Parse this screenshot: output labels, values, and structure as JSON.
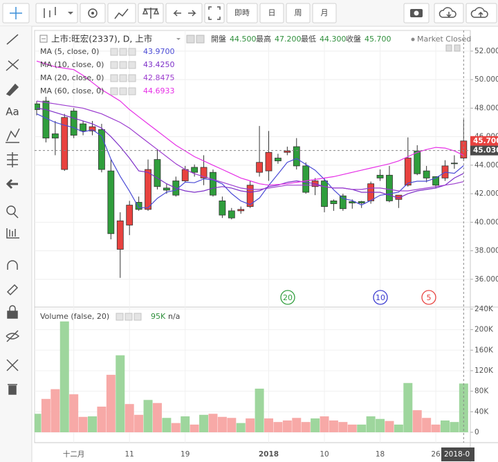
{
  "toolbar": {
    "buttons": [
      "即時",
      "日",
      "周",
      "月"
    ],
    "text_tool": "Aa"
  },
  "header": {
    "symbol": "上市:旺宏(2337), D, 上市",
    "fields": [
      {
        "label": "開盤",
        "value": "44.500"
      },
      {
        "label": "最高",
        "value": "47.200"
      },
      {
        "label": "最低",
        "value": "44.300"
      },
      {
        "label": "收盤",
        "value": "45.700"
      }
    ],
    "status": "Market Closed"
  },
  "chart_data": [
    {
      "type": "candlestick",
      "categories": [
        null,
        null,
        null,
        null,
        "十二月",
        null,
        null,
        null,
        null,
        null,
        "11",
        null,
        null,
        null,
        null,
        null,
        "19",
        null,
        null,
        null,
        null,
        null,
        null,
        null,
        null,
        "2018",
        null,
        null,
        null,
        null,
        null,
        "10",
        null,
        null,
        null,
        null,
        null,
        "18",
        null,
        null,
        null,
        null,
        null,
        "26",
        null,
        null,
        null
      ],
      "open": [
        48.3,
        48.5,
        46.2,
        43.7,
        47.8,
        46.9,
        46.4,
        46.5,
        43.6,
        38.1,
        39.8,
        41.4,
        40.9,
        44.4,
        42.4,
        42.9,
        42.9,
        43.85,
        43.1,
        43.5,
        41.5,
        40.8,
        40.8,
        41.1,
        43.5,
        43.6,
        44.5,
        44.9,
        45.3,
        43.95,
        42.5,
        42.9,
        41.5,
        41.85,
        41.45,
        41.45,
        41.5,
        43.3,
        43.3,
        41.6,
        42.6,
        45.0,
        43.6,
        43.2,
        43.1,
        44.15,
        44.5
      ],
      "high": [
        48.5,
        48.8,
        47.1,
        47.6,
        48.0,
        47.1,
        47.1,
        46.9,
        44.4,
        40.7,
        41.5,
        41.8,
        44.4,
        45.1,
        42.7,
        43.2,
        43.95,
        44.05,
        44.7,
        43.7,
        41.8,
        41.0,
        41.1,
        42.9,
        46.75,
        46.4,
        44.8,
        45.3,
        45.9,
        44.2,
        43.1,
        43.1,
        41.6,
        42.0,
        41.6,
        41.5,
        42.85,
        43.7,
        43.95,
        41.9,
        45.95,
        45.4,
        43.95,
        43.2,
        44.35,
        44.7,
        47.2
      ],
      "low": [
        47.5,
        45.6,
        44.7,
        43.6,
        45.9,
        46.1,
        46.1,
        43.5,
        38.8,
        36.1,
        39.1,
        40.8,
        40.8,
        42.3,
        42.0,
        41.8,
        42.8,
        43.2,
        42.6,
        41.8,
        40.3,
        40.2,
        40.6,
        41.0,
        43.2,
        42.9,
        44.1,
        44.7,
        43.7,
        42.0,
        41.9,
        40.7,
        40.8,
        40.8,
        40.95,
        41.0,
        41.3,
        42.9,
        41.4,
        41.0,
        42.5,
        43.3,
        42.8,
        42.4,
        42.9,
        43.75,
        44.3
      ],
      "close": [
        47.9,
        45.9,
        45.9,
        47.35,
        46.1,
        46.4,
        46.7,
        43.7,
        39.2,
        40.1,
        41.2,
        40.9,
        43.7,
        42.5,
        42.25,
        41.9,
        43.7,
        43.5,
        43.85,
        41.9,
        40.5,
        40.3,
        40.9,
        42.6,
        44.2,
        44.9,
        44.3,
        45.0,
        43.95,
        42.1,
        42.9,
        41.1,
        41.3,
        40.95,
        41.35,
        41.35,
        42.7,
        43.1,
        41.5,
        41.9,
        44.5,
        43.4,
        43.1,
        42.6,
        43.95,
        44.1,
        45.7
      ],
      "up_color": "#e8423f",
      "down_color": "#2f9e3c",
      "ylim": [
        34.1,
        53.45
      ],
      "yticks": [
        {
          "value": 36,
          "label": "36.000"
        },
        {
          "value": 38,
          "label": "38.000"
        },
        {
          "value": 40,
          "label": "40.000"
        },
        {
          "value": 42,
          "label": "42.000"
        },
        {
          "value": 44,
          "label": "44.000"
        },
        {
          "value": 46,
          "label": "46.000"
        },
        {
          "value": 48,
          "label": "48.000"
        },
        {
          "value": 50,
          "label": "50.000"
        },
        {
          "value": 52,
          "label": "52.000"
        }
      ],
      "grid": true,
      "series": [
        {
          "name": "MA (5, close, 0)",
          "value_label": "43.9700",
          "color": "#4b4bd6",
          "values": [
            47.6,
            47.3,
            47.0,
            46.8,
            46.63,
            46.33,
            46.49,
            46.05,
            44.42,
            43.22,
            42.18,
            41.02,
            41.02,
            41.68,
            42.11,
            42.25,
            42.81,
            42.77,
            43.04,
            42.97,
            42.69,
            42.01,
            41.49,
            41.24,
            41.7,
            42.58,
            43.38,
            44.2,
            44.47,
            44.05,
            43.65,
            43.01,
            42.27,
            41.67,
            41.52,
            41.21,
            41.53,
            41.89,
            42.0,
            42.11,
            42.74,
            42.88,
            42.88,
            43.1,
            43.51,
            43.43,
            43.97
          ]
        },
        {
          "name": "MA (10, close, 0)",
          "value_label": "43.4250",
          "color": "#7d2fc8",
          "values": [
            48.0,
            47.9,
            47.7,
            47.5,
            47.3,
            47.1,
            46.9,
            46.6,
            46.0,
            45.3,
            44.5,
            43.6,
            43.5,
            43.1,
            42.7,
            42.4,
            42.2,
            42.1,
            42.2,
            42.4,
            42.5,
            42.4,
            42.2,
            42.1,
            42.2,
            42.5,
            42.6,
            42.8,
            42.9,
            42.8,
            42.7,
            42.5,
            42.4,
            42.4,
            42.3,
            42.1,
            42.1,
            42.1,
            41.9,
            41.7,
            42.0,
            42.2,
            42.3,
            42.4,
            42.6,
            43.1,
            43.425
          ]
        },
        {
          "name": "MA (20, close, 0)",
          "value_label": "42.8475",
          "color": "#9c3ccf",
          "values": [
            48.5,
            48.4,
            48.3,
            48.2,
            48.1,
            48.0,
            47.8,
            47.6,
            47.3,
            47.0,
            46.6,
            46.1,
            45.6,
            45.1,
            44.6,
            44.1,
            43.7,
            43.4,
            43.2,
            43.0,
            42.8,
            42.6,
            42.4,
            42.3,
            42.3,
            42.4,
            42.5,
            42.6,
            42.6,
            42.6,
            42.6,
            42.5,
            42.4,
            42.4,
            42.3,
            42.3,
            42.4,
            42.4,
            42.3,
            42.2,
            42.2,
            42.3,
            42.4,
            42.5,
            42.6,
            42.7,
            42.8475
          ]
        },
        {
          "name": "MA (60, close, 0)",
          "value_label": "44.6933",
          "color": "#e62ee6",
          "values": [
            51.3,
            51.1,
            50.9,
            50.8,
            50.7,
            50.3,
            49.8,
            49.3,
            48.9,
            48.5,
            47.9,
            47.4,
            46.9,
            46.4,
            45.9,
            45.4,
            45.0,
            44.6,
            44.3,
            44.0,
            43.7,
            43.4,
            43.1,
            42.9,
            42.7,
            42.6,
            42.65,
            42.7,
            42.8,
            42.9,
            43.0,
            43.1,
            43.2,
            43.35,
            43.5,
            43.65,
            43.8,
            43.95,
            44.1,
            44.3,
            44.6,
            44.9,
            45.1,
            45.25,
            45.2,
            45.0,
            44.6933
          ]
        }
      ],
      "last_price": {
        "value": 45.7,
        "label": "45.700"
      },
      "crosshair_price": {
        "value": 45.03,
        "label": "45.030"
      },
      "crosshair_date": "2018-0",
      "markers": [
        {
          "label": "20",
          "color": "#2f9e3c"
        },
        {
          "label": "10",
          "color": "#3a3ad0"
        },
        {
          "label": "5",
          "color": "#e8423f"
        }
      ]
    },
    {
      "type": "bar",
      "title": "Volume (false, 20)",
      "value_label": "95K",
      "extra": "n/a",
      "values": [
        36000,
        65000,
        84000,
        216000,
        74000,
        30000,
        31000,
        50000,
        112000,
        150000,
        55000,
        34000,
        63000,
        57000,
        28000,
        18000,
        31000,
        15000,
        34000,
        36000,
        30000,
        28000,
        18000,
        27000,
        85000,
        27000,
        20000,
        23000,
        28000,
        20000,
        27000,
        31000,
        23000,
        20000,
        15000,
        15000,
        31000,
        26000,
        22000,
        15000,
        96000,
        43000,
        28000,
        15000,
        23000,
        20000,
        95000
      ],
      "colors": [
        "#9ed69d",
        "#f7a9a7",
        "#f7a9a7",
        "#9ed69d",
        "#f7a9a7",
        "#f7a9a7",
        "#9ed69d",
        "#f7a9a7",
        "#f7a9a7",
        "#9ed69d",
        "#f7a9a7",
        "#f7a9a7",
        "#9ed69d",
        "#f7a9a7",
        "#9ed69d",
        "#f7a9a7",
        "#9ed69d",
        "#f7a9a7",
        "#9ed69d",
        "#f7a9a7",
        "#f7a9a7",
        "#f7a9a7",
        "#9ed69d",
        "#f7a9a7",
        "#9ed69d",
        "#f7a9a7",
        "#f7a9a7",
        "#f7a9a7",
        "#f7a9a7",
        "#f7a9a7",
        "#9ed69d",
        "#f7a9a7",
        "#f7a9a7",
        "#f7a9a7",
        "#f7a9a7",
        "#9ed69d",
        "#9ed69d",
        "#9ed69d",
        "#f7a9a7",
        "#9ed69d",
        "#9ed69d",
        "#f7a9a7",
        "#f7a9a7",
        "#f7a9a7",
        "#9ed69d",
        "#9ed69d",
        "#9ed69d"
      ],
      "ylim": [
        -20200,
        242600
      ],
      "yticks": [
        0,
        {
          "value": 40000,
          "label": "40K"
        },
        {
          "value": 80000,
          "label": "80K"
        },
        {
          "value": 120000,
          "label": "120K"
        },
        {
          "value": 160000,
          "label": "160K"
        },
        {
          "value": 200000,
          "label": "200K"
        },
        {
          "value": 240000,
          "label": "240K"
        }
      ]
    }
  ]
}
